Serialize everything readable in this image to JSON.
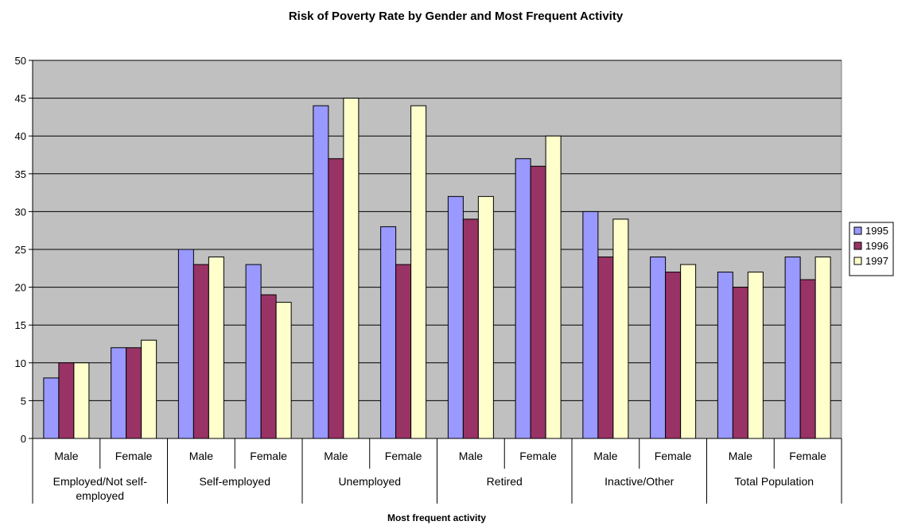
{
  "chart_data": {
    "type": "bar",
    "title": "Risk of Poverty Rate by Gender and Most Frequent Activity",
    "xlabel": "Most frequent activity",
    "ylabel": "",
    "ylim": [
      0,
      50
    ],
    "y_ticks": [
      0,
      5,
      10,
      15,
      20,
      25,
      30,
      35,
      40,
      45,
      50
    ],
    "grid": true,
    "legend_position": "right",
    "groups": [
      {
        "label": "Employed/Not self-employed",
        "label_lines": [
          "Employed/Not self-",
          "employed"
        ]
      },
      {
        "label": "Self-employed",
        "label_lines": [
          "Self-employed"
        ]
      },
      {
        "label": "Unemployed",
        "label_lines": [
          "Unemployed"
        ]
      },
      {
        "label": "Retired",
        "label_lines": [
          "Retired"
        ]
      },
      {
        "label": "Inactive/Other",
        "label_lines": [
          "Inactive/Other"
        ]
      },
      {
        "label": "Total Population",
        "label_lines": [
          "Total Population"
        ]
      }
    ],
    "categories": [
      "Male",
      "Female",
      "Male",
      "Female",
      "Male",
      "Female",
      "Male",
      "Female",
      "Male",
      "Female",
      "Male",
      "Female"
    ],
    "series": [
      {
        "name": "1995",
        "color": "#9999ff",
        "values": [
          8,
          12,
          25,
          23,
          44,
          28,
          32,
          37,
          30,
          24,
          22,
          24
        ]
      },
      {
        "name": "1996",
        "color": "#993366",
        "values": [
          10,
          12,
          23,
          19,
          37,
          23,
          29,
          36,
          24,
          22,
          20,
          21
        ]
      },
      {
        "name": "1997",
        "color": "#ffffcc",
        "values": [
          10,
          13,
          24,
          18,
          45,
          44,
          32,
          40,
          29,
          23,
          22,
          24
        ]
      }
    ],
    "plot_background": "#c0c0c0",
    "gridline_color": "#000000"
  }
}
